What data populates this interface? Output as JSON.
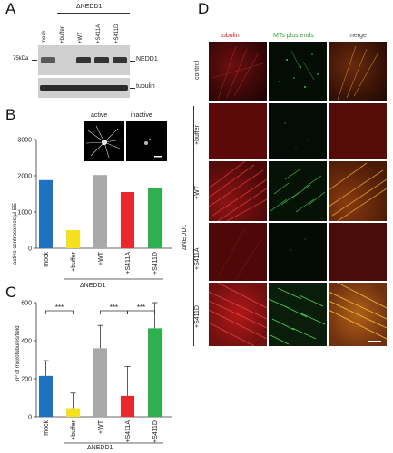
{
  "panels": {
    "A": "A",
    "B": "B",
    "C": "C",
    "D": "D"
  },
  "panel_a": {
    "group_label": "ΔNEDD1",
    "lanes": [
      "mock",
      "+buffer",
      "+WT",
      "+S411A",
      "+S411D"
    ],
    "marker": "75kDa",
    "bands": [
      "NEDD1",
      "tubulin"
    ]
  },
  "panel_b": {
    "image_labels": [
      "active",
      "inactive"
    ],
    "ylabel": "active centrosomes/µl EE",
    "group_label": "ΔNEDD1",
    "categories": [
      "mock",
      "+buffer",
      "+WT",
      "+S411A",
      "+S411D"
    ]
  },
  "panel_c": {
    "ylabel": "nº of microtubules/field",
    "group_label": "ΔNEDD1",
    "categories": [
      "mock",
      "+buffer",
      "+WT",
      "+S411A",
      "+S411D"
    ],
    "significance": [
      "***",
      "***",
      "***"
    ]
  },
  "panel_d": {
    "columns": [
      "tubulin",
      "MTs plus ends",
      "merge"
    ],
    "column_colors": [
      "#d42020",
      "#2aa52a",
      "#444444"
    ],
    "rows": [
      "control",
      "+buffer",
      "+WT",
      "+S411A",
      "+S411D"
    ],
    "group_label": "ΔNEDD1"
  },
  "chart_data": [
    {
      "type": "bar",
      "categories": [
        "mock",
        "+buffer",
        "+WT",
        "+S411A",
        "+S411D"
      ],
      "values": [
        1880,
        500,
        2020,
        1550,
        1660
      ],
      "colors": [
        "#1f72c2",
        "#f5e020",
        "#a8a8a8",
        "#e8282a",
        "#2eb04e"
      ],
      "ylabel": "active centrosomes/µl EE",
      "yticks": [
        "0",
        "1000",
        "2000",
        "3000"
      ],
      "ylim": [
        0,
        3000
      ]
    },
    {
      "type": "bar",
      "categories": [
        "mock",
        "+buffer",
        "+WT",
        "+S411A",
        "+S411D"
      ],
      "values": [
        215,
        45,
        360,
        110,
        465
      ],
      "errors": [
        80,
        80,
        120,
        155,
        135
      ],
      "colors": [
        "#1f72c2",
        "#f5e020",
        "#a8a8a8",
        "#e8282a",
        "#2eb04e"
      ],
      "ylabel": "nº of microtubules/field",
      "yticks": [
        "0",
        "200",
        "400",
        "600"
      ],
      "ylim": [
        0,
        600
      ]
    }
  ]
}
